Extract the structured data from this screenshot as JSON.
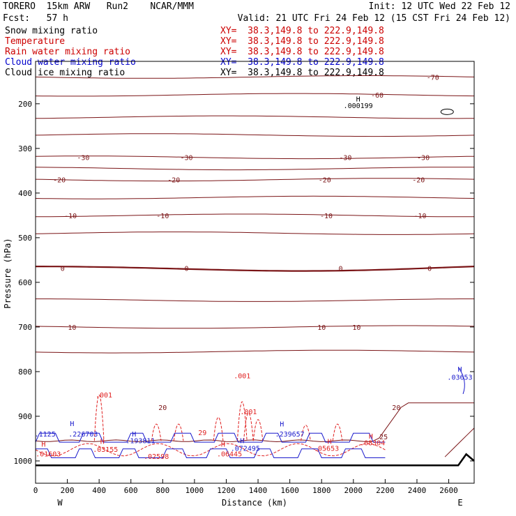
{
  "header": {
    "model": "TORERO  15km ARW   Run2    NCAR/MMM",
    "init": "Init: 12 UTC Wed 22 Feb 12",
    "fcst": "Fcst:   57 h",
    "valid": "Valid: 21 UTC Fri 24 Feb 12 (15 CST Fri 24 Feb 12)"
  },
  "legend": [
    {
      "name": "Snow mixing ratio",
      "xy": "XY=  38.3,149.8 to 222.9,149.8",
      "color": "#000000"
    },
    {
      "name": "Temperature",
      "xy": "XY=  38.3,149.8 to 222.9,149.8",
      "color": "#cc0000"
    },
    {
      "name": "Rain water mixing ratio",
      "xy": "XY=  38.3,149.8 to 222.9,149.8",
      "color": "#cc0000"
    },
    {
      "name": "Cloud water mixing ratio",
      "xy": "XY=  38.3,149.8 to 222.9,149.8",
      "color": "#0000cc"
    },
    {
      "name": "Cloud ice mixing ratio",
      "xy": "XY=  38.3,149.8 to 222.9,149.8",
      "color": "#000000"
    }
  ],
  "chart_data": {
    "type": "line",
    "xlabel": "Distance (km)",
    "ylabel": "Pressure (hPa)",
    "xlim": [
      0,
      2760
    ],
    "ylim": [
      105,
      1050
    ],
    "x_ticks": [
      0,
      200,
      400,
      600,
      800,
      1000,
      1200,
      1400,
      1600,
      1800,
      2000,
      2200,
      2400,
      2600
    ],
    "y_ticks": [
      200,
      300,
      400,
      500,
      600,
      700,
      800,
      900,
      1000
    ],
    "left_end_label": "W",
    "right_end_label": "E",
    "colors": {
      "temperature": "#7a1416",
      "rain": "#e02020",
      "cloud_water": "#1a1acc",
      "snow": "#000000",
      "terrain": "#000000"
    },
    "temperature_isotherms": [
      {
        "value": -70,
        "pressure": 140,
        "labels": [
          {
            "x": 2500,
            "text": "-70"
          }
        ]
      },
      {
        "value": -60,
        "pressure": 180,
        "labels": [
          {
            "x": 2150,
            "text": "-60"
          }
        ]
      },
      {
        "value": -50,
        "pressure": 230
      },
      {
        "value": -40,
        "pressure": 270
      },
      {
        "value": -30,
        "pressure": 320,
        "labels": [
          {
            "x": 300,
            "text": "-30"
          },
          {
            "x": 950,
            "text": "-30"
          },
          {
            "x": 1950,
            "text": "-30"
          },
          {
            "x": 2440,
            "text": "-30"
          }
        ]
      },
      {
        "value": -25,
        "pressure": 345
      },
      {
        "value": -20,
        "pressure": 370,
        "labels": [
          {
            "x": 150,
            "text": "-20"
          },
          {
            "x": 870,
            "text": "-20"
          },
          {
            "x": 1820,
            "text": "-20"
          },
          {
            "x": 2410,
            "text": "-20"
          }
        ]
      },
      {
        "value": -15,
        "pressure": 410
      },
      {
        "value": -10,
        "pressure": 450,
        "labels": [
          {
            "x": 220,
            "text": "-10"
          },
          {
            "x": 800,
            "text": "-10"
          },
          {
            "x": 1830,
            "text": "-10"
          },
          {
            "x": 2420,
            "text": "-10"
          }
        ]
      },
      {
        "value": -5,
        "pressure": 490
      },
      {
        "value": 0,
        "pressure": 568,
        "labels": [
          {
            "x": 170,
            "text": "0"
          },
          {
            "x": 950,
            "text": "0"
          },
          {
            "x": 1920,
            "text": "0"
          },
          {
            "x": 2480,
            "text": "0"
          }
        ]
      },
      {
        "value": 5,
        "pressure": 640
      },
      {
        "value": 10,
        "pressure": 700,
        "labels": [
          {
            "x": 230,
            "text": "10"
          },
          {
            "x": 1800,
            "text": "10"
          },
          {
            "x": 2020,
            "text": "10"
          }
        ]
      },
      {
        "value": 15,
        "pressure": 755
      },
      {
        "value": 20,
        "pressure": 880,
        "labels": [
          {
            "x": 2270,
            "text": "20"
          },
          {
            "x": 800,
            "text": "20"
          }
        ]
      },
      {
        "value": 25,
        "pressure": 945,
        "labels": [
          {
            "x": 2190,
            "text": "25"
          }
        ]
      }
    ],
    "annotations": [
      {
        "x": 2030,
        "p": 195,
        "text": "H",
        "series": "snow"
      },
      {
        "x": 2030,
        "p": 210,
        "text": ".000199",
        "series": "snow"
      },
      {
        "x": 2670,
        "p": 800,
        "text": "H",
        "series": "cloud_water"
      },
      {
        "x": 2670,
        "p": 818,
        "text": ".03653",
        "series": "cloud_water"
      },
      {
        "x": 1300,
        "p": 815,
        "text": ".001",
        "series": "rain"
      },
      {
        "x": 430,
        "p": 858,
        "text": ".001",
        "series": "rain"
      },
      {
        "x": 1340,
        "p": 895,
        "text": ".001",
        "series": "rain"
      },
      {
        "x": 230,
        "p": 922,
        "text": "H",
        "series": "cloud_water"
      },
      {
        "x": 60,
        "p": 945,
        "text": ".1125",
        "series": "cloud_water"
      },
      {
        "x": 300,
        "p": 945,
        "text": ".226703",
        "series": "cloud_water"
      },
      {
        "x": 620,
        "p": 945,
        "text": "H",
        "series": "cloud_water"
      },
      {
        "x": 660,
        "p": 960,
        "text": ".193811",
        "series": "cloud_water"
      },
      {
        "x": 1050,
        "p": 942,
        "text": "29",
        "series": "rain"
      },
      {
        "x": 1600,
        "p": 945,
        "text": ".239657",
        "series": "cloud_water"
      },
      {
        "x": 1550,
        "p": 923,
        "text": "H",
        "series": "cloud_water"
      },
      {
        "x": 1300,
        "p": 960,
        "text": "H",
        "series": "cloud_water"
      },
      {
        "x": 1180,
        "p": 968,
        "text": "H",
        "series": "rain"
      },
      {
        "x": 1320,
        "p": 977,
        "text": ".072495",
        "series": "cloud_water"
      },
      {
        "x": 420,
        "p": 962,
        "text": "H",
        "series": "rain"
      },
      {
        "x": 440,
        "p": 980,
        "text": ".03155",
        "series": "rain"
      },
      {
        "x": 1850,
        "p": 962,
        "text": "H",
        "series": "rain"
      },
      {
        "x": 1830,
        "p": 977,
        "text": ".05653",
        "series": "rain"
      },
      {
        "x": 2110,
        "p": 950,
        "text": "H",
        "series": "rain"
      },
      {
        "x": 2120,
        "p": 965,
        "text": ".08304",
        "series": "rain"
      },
      {
        "x": 50,
        "p": 968,
        "text": "H",
        "series": "rain"
      },
      {
        "x": 80,
        "p": 990,
        "text": ".01603",
        "series": "rain"
      },
      {
        "x": 760,
        "p": 995,
        "text": ".02598",
        "series": "rain"
      },
      {
        "x": 1220,
        "p": 990,
        "text": ".06445",
        "series": "rain"
      },
      {
        "x": 2590,
        "p": 233,
        "text": "◇",
        "series": "snow"
      }
    ],
    "terrain_pressure": 1010
  }
}
